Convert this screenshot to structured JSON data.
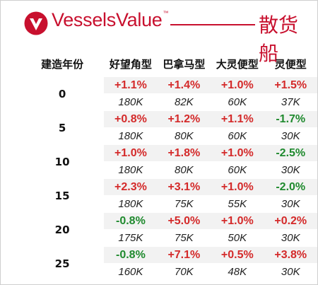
{
  "brand": {
    "name": "VesselsValue",
    "tm": "™",
    "accent": "#c8102e"
  },
  "section_title": "散货船",
  "table": {
    "headers": [
      "建造年份",
      "好望角型",
      "巴拿马型",
      "大灵便型",
      "灵便型"
    ],
    "rows": [
      {
        "age": "0",
        "changes": [
          "+1.1%",
          "+1.4%",
          "+1.0%",
          "+1.5%"
        ],
        "prices": [
          "180K",
          "82K",
          "60K",
          "37K"
        ]
      },
      {
        "age": "5",
        "changes": [
          "+0.8%",
          "+1.2%",
          "+1.1%",
          "-1.7%"
        ],
        "prices": [
          "180K",
          "80K",
          "60K",
          "30K"
        ]
      },
      {
        "age": "10",
        "changes": [
          "+1.0%",
          "+1.8%",
          "+1.0%",
          "-2.5%"
        ],
        "prices": [
          "180K",
          "80K",
          "60K",
          "30K"
        ]
      },
      {
        "age": "15",
        "changes": [
          "+2.3%",
          "+3.1%",
          "+1.0%",
          "-2.0%"
        ],
        "prices": [
          "180K",
          "75K",
          "55K",
          "30K"
        ]
      },
      {
        "age": "20",
        "changes": [
          "-0.8%",
          "+5.0%",
          "+1.0%",
          "+0.2%"
        ],
        "prices": [
          "175K",
          "75K",
          "50K",
          "30K"
        ]
      },
      {
        "age": "25",
        "changes": [
          "-0.8%",
          "+7.1%",
          "+0.5%",
          "+3.8%"
        ],
        "prices": [
          "160K",
          "70K",
          "48K",
          "30K"
        ]
      }
    ]
  },
  "colors": {
    "positive": "#d42a2a",
    "negative": "#1f8a2e",
    "row_shade": "#f2f2f2"
  }
}
